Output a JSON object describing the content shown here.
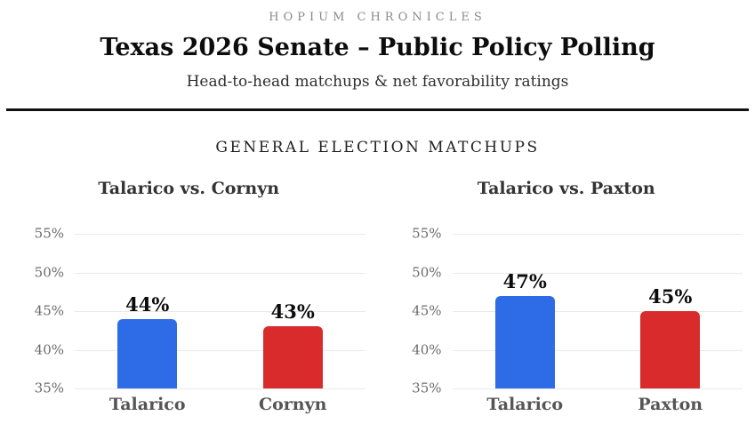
{
  "header": {
    "kicker": "HOPIUM CHRONICLES",
    "title": "Texas 2026 Senate – Public Policy Polling",
    "subtitle": "Head-to-head matchups & net favorability ratings"
  },
  "section_title": "GENERAL ELECTION MATCHUPS",
  "colors": {
    "dem_blue": "#2e6be6",
    "gop_red": "#d92b2b",
    "gridline": "#e9e9e9",
    "tick_text": "#6b6b6b",
    "x_label_text": "#555555",
    "value_label_text": "#0c0c0c",
    "divider": "#111111"
  },
  "chart_data": [
    {
      "type": "bar",
      "title": "Talarico vs. Cornyn",
      "categories": [
        "Talarico",
        "Cornyn"
      ],
      "values": [
        44,
        43
      ],
      "value_labels": [
        "44%",
        "43%"
      ],
      "bar_colors": [
        "#2e6be6",
        "#d92b2b"
      ],
      "ylim": [
        35,
        55
      ],
      "yticks": [
        35,
        40,
        45,
        50,
        55
      ],
      "ytick_labels": [
        "35%",
        "40%",
        "45%",
        "50%",
        "55%"
      ],
      "grid": true,
      "legend_position": "none"
    },
    {
      "type": "bar",
      "title": "Talarico vs. Paxton",
      "categories": [
        "Talarico",
        "Paxton"
      ],
      "values": [
        47,
        45
      ],
      "value_labels": [
        "47%",
        "45%"
      ],
      "bar_colors": [
        "#2e6be6",
        "#d92b2b"
      ],
      "ylim": [
        35,
        55
      ],
      "yticks": [
        35,
        40,
        45,
        50,
        55
      ],
      "ytick_labels": [
        "35%",
        "40%",
        "45%",
        "50%",
        "55%"
      ],
      "grid": true,
      "legend_position": "none"
    }
  ]
}
